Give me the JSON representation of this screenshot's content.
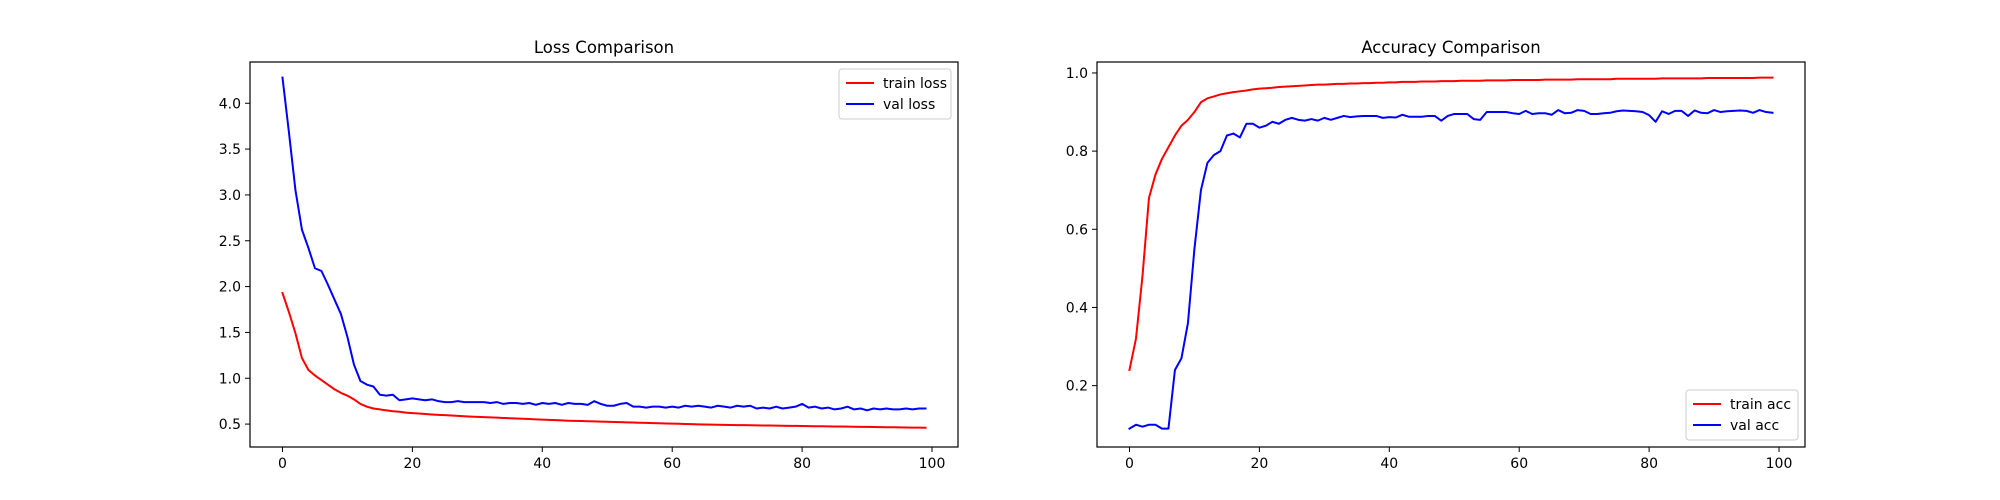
{
  "chart_data": [
    {
      "type": "line",
      "title": "Loss Comparison",
      "xlabel": "",
      "ylabel": "",
      "xlim": [
        -5,
        104
      ],
      "ylim": [
        0.25,
        4.45
      ],
      "xticks": [
        0,
        20,
        40,
        60,
        80,
        100
      ],
      "yticks": [
        0.5,
        1.0,
        1.5,
        2.0,
        2.5,
        3.0,
        3.5,
        4.0
      ],
      "yticklabels": [
        "0.5",
        "1.0",
        "1.5",
        "2.0",
        "2.5",
        "3.0",
        "3.5",
        "4.0"
      ],
      "legend_position": "top-right",
      "grid": false,
      "series": [
        {
          "name": "train loss",
          "color": "#ff0000",
          "x": [
            0,
            1,
            2,
            3,
            4,
            5,
            6,
            7,
            8,
            9,
            10,
            11,
            12,
            13,
            14,
            15,
            16,
            17,
            18,
            19,
            20,
            21,
            22,
            23,
            24,
            25,
            26,
            27,
            28,
            29,
            30,
            31,
            32,
            33,
            34,
            35,
            36,
            37,
            38,
            39,
            40,
            41,
            42,
            43,
            44,
            45,
            46,
            47,
            48,
            49,
            50,
            51,
            52,
            53,
            54,
            55,
            56,
            57,
            58,
            59,
            60,
            61,
            62,
            63,
            64,
            65,
            66,
            67,
            68,
            69,
            70,
            71,
            72,
            73,
            74,
            75,
            76,
            77,
            78,
            79,
            80,
            81,
            82,
            83,
            84,
            85,
            86,
            87,
            88,
            89,
            90,
            91,
            92,
            93,
            94,
            95,
            96,
            97,
            98,
            99
          ],
          "values": [
            1.93,
            1.72,
            1.49,
            1.22,
            1.09,
            1.03,
            0.98,
            0.93,
            0.88,
            0.84,
            0.81,
            0.77,
            0.72,
            0.69,
            0.67,
            0.66,
            0.65,
            0.64,
            0.635,
            0.625,
            0.62,
            0.615,
            0.61,
            0.605,
            0.6,
            0.598,
            0.594,
            0.59,
            0.586,
            0.582,
            0.579,
            0.576,
            0.573,
            0.57,
            0.567,
            0.564,
            0.561,
            0.558,
            0.555,
            0.552,
            0.549,
            0.546,
            0.543,
            0.54,
            0.537,
            0.535,
            0.533,
            0.531,
            0.529,
            0.527,
            0.525,
            0.523,
            0.521,
            0.519,
            0.517,
            0.515,
            0.513,
            0.511,
            0.509,
            0.507,
            0.505,
            0.503,
            0.501,
            0.499,
            0.497,
            0.495,
            0.494,
            0.493,
            0.491,
            0.49,
            0.489,
            0.488,
            0.487,
            0.486,
            0.485,
            0.484,
            0.483,
            0.482,
            0.481,
            0.48,
            0.479,
            0.478,
            0.477,
            0.476,
            0.475,
            0.474,
            0.473,
            0.472,
            0.471,
            0.47,
            0.469,
            0.468,
            0.467,
            0.466,
            0.465,
            0.464,
            0.463,
            0.462,
            0.461,
            0.46
          ]
        },
        {
          "name": "val loss",
          "color": "#0000ff",
          "x": [
            0,
            1,
            2,
            3,
            4,
            5,
            6,
            7,
            8,
            9,
            10,
            11,
            12,
            13,
            14,
            15,
            16,
            17,
            18,
            19,
            20,
            21,
            22,
            23,
            24,
            25,
            26,
            27,
            28,
            29,
            30,
            31,
            32,
            33,
            34,
            35,
            36,
            37,
            38,
            39,
            40,
            41,
            42,
            43,
            44,
            45,
            46,
            47,
            48,
            49,
            50,
            51,
            52,
            53,
            54,
            55,
            56,
            57,
            58,
            59,
            60,
            61,
            62,
            63,
            64,
            65,
            66,
            67,
            68,
            69,
            70,
            71,
            72,
            73,
            74,
            75,
            76,
            77,
            78,
            79,
            80,
            81,
            82,
            83,
            84,
            85,
            86,
            87,
            88,
            89,
            90,
            91,
            92,
            93,
            94,
            95,
            96,
            97,
            98,
            99
          ],
          "values": [
            4.28,
            3.68,
            3.05,
            2.62,
            2.42,
            2.2,
            2.17,
            2.02,
            1.86,
            1.7,
            1.45,
            1.15,
            0.97,
            0.93,
            0.91,
            0.82,
            0.81,
            0.82,
            0.76,
            0.77,
            0.78,
            0.77,
            0.76,
            0.77,
            0.75,
            0.74,
            0.74,
            0.75,
            0.74,
            0.74,
            0.74,
            0.74,
            0.73,
            0.74,
            0.72,
            0.73,
            0.73,
            0.72,
            0.73,
            0.71,
            0.73,
            0.72,
            0.73,
            0.71,
            0.73,
            0.72,
            0.72,
            0.71,
            0.75,
            0.72,
            0.7,
            0.7,
            0.72,
            0.73,
            0.69,
            0.69,
            0.68,
            0.69,
            0.69,
            0.68,
            0.69,
            0.68,
            0.7,
            0.69,
            0.7,
            0.69,
            0.68,
            0.7,
            0.69,
            0.68,
            0.7,
            0.69,
            0.7,
            0.67,
            0.68,
            0.67,
            0.69,
            0.67,
            0.68,
            0.69,
            0.72,
            0.68,
            0.69,
            0.67,
            0.68,
            0.66,
            0.67,
            0.69,
            0.66,
            0.67,
            0.65,
            0.67,
            0.66,
            0.67,
            0.66,
            0.66,
            0.67,
            0.66,
            0.67,
            0.67
          ]
        }
      ]
    },
    {
      "type": "line",
      "title": "Accuracy Comparison",
      "xlabel": "",
      "ylabel": "",
      "xlim": [
        -5,
        104
      ],
      "ylim": [
        0.043,
        1.028
      ],
      "xticks": [
        0,
        20,
        40,
        60,
        80,
        100
      ],
      "yticks": [
        0.2,
        0.4,
        0.6,
        0.8,
        1.0
      ],
      "yticklabels": [
        "0.2",
        "0.4",
        "0.6",
        "0.8",
        "1.0"
      ],
      "legend_position": "bottom-right",
      "grid": false,
      "series": [
        {
          "name": "train acc",
          "color": "#ff0000",
          "x": [
            0,
            1,
            2,
            3,
            4,
            5,
            6,
            7,
            8,
            9,
            10,
            11,
            12,
            13,
            14,
            15,
            16,
            17,
            18,
            19,
            20,
            21,
            22,
            23,
            24,
            25,
            26,
            27,
            28,
            29,
            30,
            31,
            32,
            33,
            34,
            35,
            36,
            37,
            38,
            39,
            40,
            41,
            42,
            43,
            44,
            45,
            46,
            47,
            48,
            49,
            50,
            51,
            52,
            53,
            54,
            55,
            56,
            57,
            58,
            59,
            60,
            61,
            62,
            63,
            64,
            65,
            66,
            67,
            68,
            69,
            70,
            71,
            72,
            73,
            74,
            75,
            76,
            77,
            78,
            79,
            80,
            81,
            82,
            83,
            84,
            85,
            86,
            87,
            88,
            89,
            90,
            91,
            92,
            93,
            94,
            95,
            96,
            97,
            98,
            99
          ],
          "values": [
            0.24,
            0.32,
            0.48,
            0.68,
            0.74,
            0.78,
            0.81,
            0.84,
            0.865,
            0.88,
            0.9,
            0.925,
            0.935,
            0.94,
            0.945,
            0.948,
            0.951,
            0.953,
            0.955,
            0.958,
            0.96,
            0.961,
            0.962,
            0.964,
            0.965,
            0.966,
            0.967,
            0.968,
            0.969,
            0.97,
            0.97,
            0.971,
            0.972,
            0.972,
            0.973,
            0.973,
            0.974,
            0.974,
            0.975,
            0.975,
            0.976,
            0.976,
            0.977,
            0.977,
            0.977,
            0.978,
            0.978,
            0.978,
            0.979,
            0.979,
            0.979,
            0.98,
            0.98,
            0.98,
            0.98,
            0.981,
            0.981,
            0.981,
            0.981,
            0.982,
            0.982,
            0.982,
            0.982,
            0.982,
            0.983,
            0.983,
            0.983,
            0.983,
            0.983,
            0.984,
            0.984,
            0.984,
            0.984,
            0.984,
            0.984,
            0.985,
            0.985,
            0.985,
            0.985,
            0.985,
            0.985,
            0.985,
            0.986,
            0.986,
            0.986,
            0.986,
            0.986,
            0.986,
            0.986,
            0.987,
            0.987,
            0.987,
            0.987,
            0.987,
            0.987,
            0.987,
            0.987,
            0.988,
            0.988,
            0.988
          ]
        },
        {
          "name": "val acc",
          "color": "#0000ff",
          "x": [
            0,
            1,
            2,
            3,
            4,
            5,
            6,
            7,
            8,
            9,
            10,
            11,
            12,
            13,
            14,
            15,
            16,
            17,
            18,
            19,
            20,
            21,
            22,
            23,
            24,
            25,
            26,
            27,
            28,
            29,
            30,
            31,
            32,
            33,
            34,
            35,
            36,
            37,
            38,
            39,
            40,
            41,
            42,
            43,
            44,
            45,
            46,
            47,
            48,
            49,
            50,
            51,
            52,
            53,
            54,
            55,
            56,
            57,
            58,
            59,
            60,
            61,
            62,
            63,
            64,
            65,
            66,
            67,
            68,
            69,
            70,
            71,
            72,
            73,
            74,
            75,
            76,
            77,
            78,
            79,
            80,
            81,
            82,
            83,
            84,
            85,
            86,
            87,
            88,
            89,
            90,
            91,
            92,
            93,
            94,
            95,
            96,
            97,
            98,
            99
          ],
          "values": [
            0.09,
            0.1,
            0.095,
            0.1,
            0.1,
            0.09,
            0.09,
            0.24,
            0.27,
            0.36,
            0.55,
            0.7,
            0.77,
            0.79,
            0.8,
            0.84,
            0.845,
            0.835,
            0.87,
            0.87,
            0.86,
            0.865,
            0.875,
            0.87,
            0.88,
            0.885,
            0.88,
            0.878,
            0.882,
            0.878,
            0.885,
            0.88,
            0.885,
            0.89,
            0.887,
            0.889,
            0.89,
            0.89,
            0.89,
            0.885,
            0.887,
            0.886,
            0.893,
            0.888,
            0.888,
            0.888,
            0.89,
            0.89,
            0.878,
            0.89,
            0.895,
            0.895,
            0.895,
            0.882,
            0.88,
            0.9,
            0.9,
            0.9,
            0.9,
            0.897,
            0.895,
            0.903,
            0.895,
            0.897,
            0.897,
            0.893,
            0.905,
            0.897,
            0.898,
            0.905,
            0.903,
            0.895,
            0.895,
            0.897,
            0.898,
            0.902,
            0.904,
            0.903,
            0.902,
            0.9,
            0.892,
            0.875,
            0.902,
            0.895,
            0.903,
            0.903,
            0.89,
            0.904,
            0.898,
            0.897,
            0.905,
            0.9,
            0.902,
            0.903,
            0.904,
            0.903,
            0.898,
            0.905,
            0.9,
            0.898
          ]
        }
      ]
    }
  ]
}
